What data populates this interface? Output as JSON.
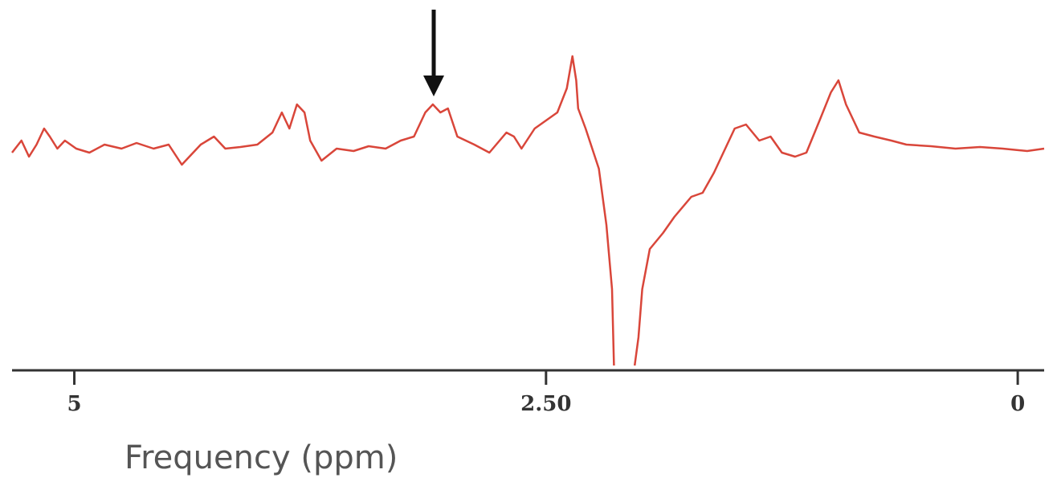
{
  "chart_data": {
    "type": "line",
    "xlabel": "Frequency (ppm)",
    "x": [
      5.33,
      5.28,
      5.24,
      5.2,
      5.16,
      5.13,
      5.09,
      5.05,
      4.99,
      4.92,
      4.84,
      4.75,
      4.67,
      4.58,
      4.5,
      4.43,
      4.39,
      4.33,
      4.26,
      4.2,
      4.12,
      4.03,
      3.95,
      3.9,
      3.86,
      3.82,
      3.78,
      3.75,
      3.69,
      3.61,
      3.52,
      3.44,
      3.35,
      3.27,
      3.2,
      3.14,
      3.1,
      3.06,
      3.02,
      2.97,
      2.88,
      2.8,
      2.71,
      2.67,
      2.63,
      2.56,
      2.5,
      2.44,
      2.39,
      2.36,
      2.34,
      2.33,
      2.29,
      2.22,
      2.18,
      2.15,
      2.14,
      2.09,
      2.03,
      2.01,
      1.99,
      1.95,
      1.88,
      1.82,
      1.73,
      1.67,
      1.61,
      1.56,
      1.5,
      1.44,
      1.37,
      1.31,
      1.25,
      1.18,
      1.12,
      1.05,
      0.99,
      0.95,
      0.91,
      0.84,
      0.76,
      0.67,
      0.59,
      0.46,
      0.33,
      0.2,
      0.08,
      -0.05,
      -0.14
    ],
    "values": [
      271,
      286,
      266,
      281,
      301,
      291,
      276,
      286,
      276,
      271,
      281,
      276,
      283,
      276,
      281,
      256,
      266,
      281,
      291,
      276,
      278,
      281,
      296,
      321,
      301,
      331,
      321,
      286,
      261,
      276,
      273,
      279,
      276,
      286,
      291,
      321,
      331,
      321,
      326,
      291,
      281,
      271,
      296,
      291,
      276,
      301,
      311,
      321,
      351,
      391,
      361,
      326,
      301,
      251,
      181,
      101,
      6,
      null,
      6,
      41,
      101,
      151,
      171,
      191,
      216,
      221,
      246,
      271,
      301,
      306,
      286,
      291,
      271,
      266,
      271,
      311,
      346,
      361,
      331,
      296,
      291,
      286,
      281,
      279,
      276,
      278,
      276,
      273,
      276
    ],
    "color": "#d9463a",
    "xlim": [
      5.33,
      -0.14
    ],
    "xticks": [
      5,
      {
        "value": 2.5,
        "label": "2.50"
      },
      0
    ],
    "ylim": [
      0,
      461
    ]
  }
}
